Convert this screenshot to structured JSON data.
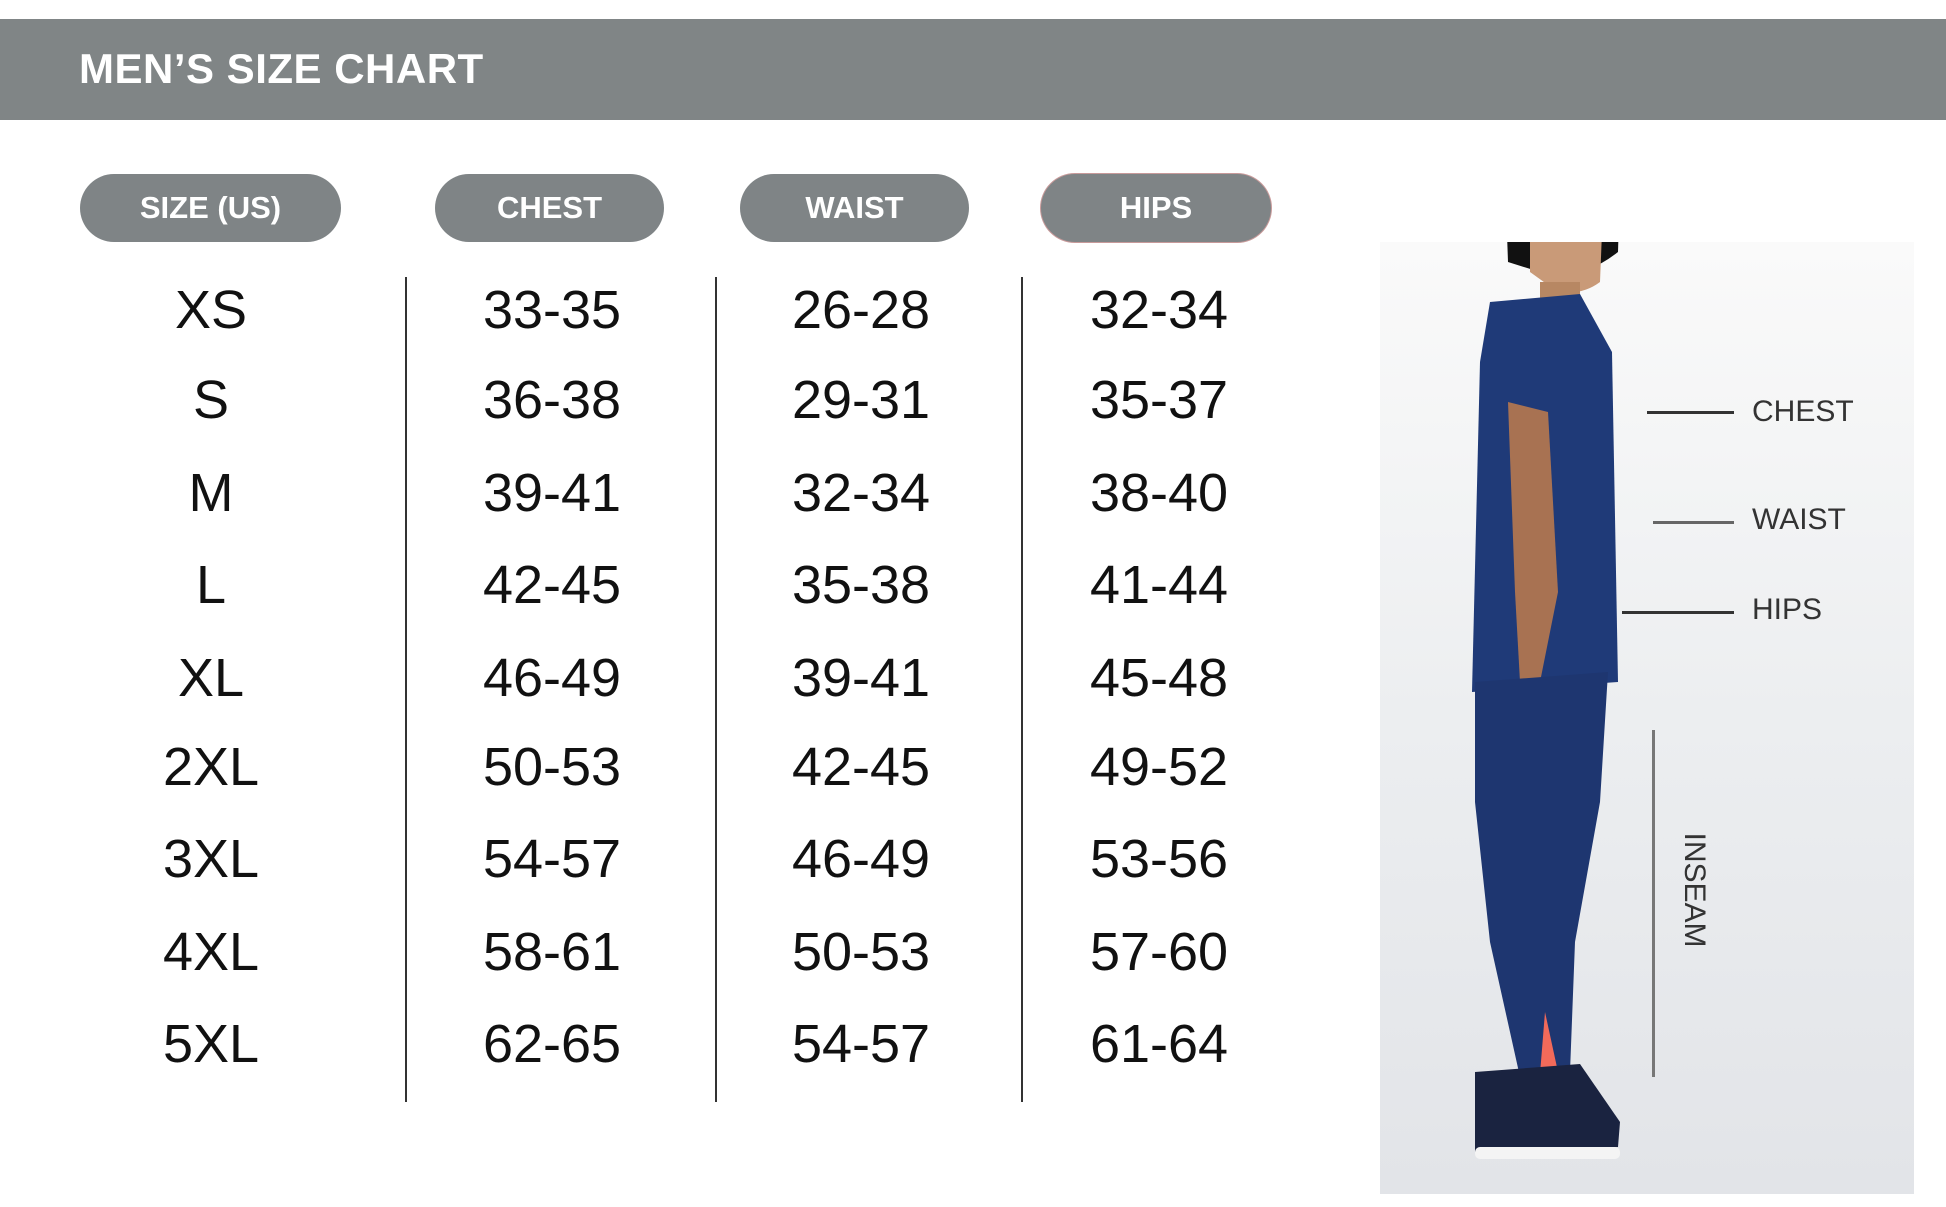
{
  "header": {
    "title": "MEN’S SIZE CHART"
  },
  "columns": [
    "SIZE (US)",
    "CHEST",
    "WAIST",
    "HIPS"
  ],
  "rows": [
    [
      "XS",
      "33-35",
      "26-28",
      "32-34"
    ],
    [
      "S",
      "36-38",
      "29-31",
      "35-37"
    ],
    [
      "M",
      "39-41",
      "32-34",
      "38-40"
    ],
    [
      "L",
      "42-45",
      "35-38",
      "41-44"
    ],
    [
      "XL",
      "46-49",
      "39-41",
      "45-48"
    ],
    [
      "2XL",
      "50-53",
      "42-45",
      "49-52"
    ],
    [
      "3XL",
      "54-57",
      "46-49",
      "53-56"
    ],
    [
      "4XL",
      "58-61",
      "50-53",
      "57-60"
    ],
    [
      "5XL",
      "62-65",
      "54-57",
      "61-64"
    ]
  ],
  "figure": {
    "labels": {
      "chest": "CHEST",
      "waist": "WAIST",
      "hips": "HIPS",
      "inseam": "INSEAM"
    }
  },
  "colors": {
    "header": "#808586",
    "pill": "#7f8486",
    "garment": "#1f3a78"
  }
}
